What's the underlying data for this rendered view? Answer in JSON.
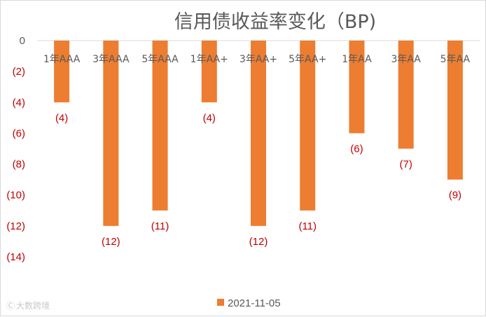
{
  "chart_data": {
    "type": "bar",
    "title": "信用债收益率变化（BP)",
    "xlabel": "",
    "ylabel": "",
    "categories": [
      "1年AAA",
      "3年AAA",
      "5年AAA",
      "1年AA+",
      "3年AA+",
      "5年AA+",
      "1年AA",
      "3年AA",
      "5年AA"
    ],
    "series": [
      {
        "name": "2021-11-05",
        "values": [
          -4,
          -12,
          -11,
          -4,
          -12,
          -11,
          -6,
          -7,
          -9
        ]
      }
    ],
    "data_labels": [
      "(4)",
      "(12)",
      "(11)",
      "(4)",
      "(12)",
      "(11)",
      "(6)",
      "(7)",
      "(9)"
    ],
    "yticks": [
      0,
      -2,
      -4,
      -6,
      -8,
      -10,
      -12,
      -14
    ],
    "ytick_labels": [
      "0",
      "(2)",
      "(4)",
      "(6)",
      "(8)",
      "(10)",
      "(12)",
      "(14)"
    ],
    "ylim": [
      -14,
      0
    ],
    "grid": false,
    "legend_position": "bottom",
    "colors": {
      "bar": "#ED7D31",
      "label": "#C00000",
      "axis_text_zero": "#595959"
    }
  },
  "watermark": "大数跨境"
}
